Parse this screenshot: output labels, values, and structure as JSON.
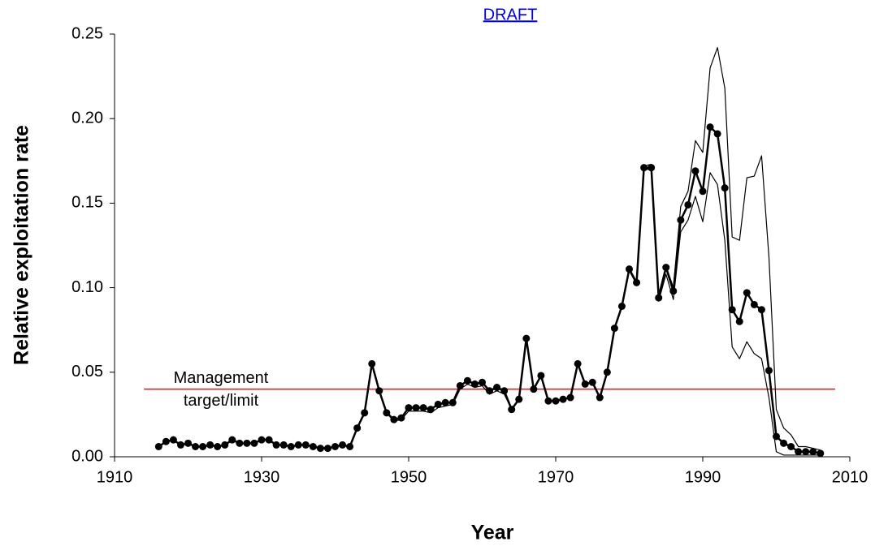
{
  "chart_data": {
    "type": "line",
    "title": "DRAFT",
    "x_label": "Year",
    "y_label": "Relative exploitation rate",
    "x": [
      1916,
      1917,
      1918,
      1919,
      1920,
      1921,
      1922,
      1923,
      1924,
      1925,
      1926,
      1927,
      1928,
      1929,
      1930,
      1931,
      1932,
      1933,
      1934,
      1935,
      1936,
      1937,
      1938,
      1939,
      1940,
      1941,
      1942,
      1943,
      1944,
      1945,
      1946,
      1947,
      1948,
      1949,
      1950,
      1951,
      1952,
      1953,
      1954,
      1955,
      1956,
      1957,
      1958,
      1959,
      1960,
      1961,
      1962,
      1963,
      1964,
      1965,
      1966,
      1967,
      1968,
      1969,
      1970,
      1971,
      1972,
      1973,
      1974,
      1975,
      1976,
      1977,
      1978,
      1979,
      1980,
      1981,
      1982,
      1983,
      1984,
      1985,
      1986,
      1987,
      1988,
      1989,
      1990,
      1991,
      1992,
      1993,
      1994,
      1995,
      1996,
      1997,
      1998,
      1999,
      2000,
      2001,
      2002,
      2003,
      2004,
      2005,
      2006
    ],
    "series": [
      {
        "color": "#000000",
        "markers": true,
        "values": [
          0.006,
          0.009,
          0.01,
          0.007,
          0.008,
          0.006,
          0.006,
          0.007,
          0.006,
          0.007,
          0.01,
          0.008,
          0.008,
          0.008,
          0.01,
          0.01,
          0.007,
          0.007,
          0.006,
          0.007,
          0.007,
          0.006,
          0.005,
          0.005,
          0.006,
          0.007,
          0.006,
          0.017,
          0.026,
          0.055,
          0.039,
          0.026,
          0.022,
          0.023,
          0.029,
          0.029,
          0.029,
          0.028,
          0.031,
          0.032,
          0.032,
          0.042,
          0.045,
          0.043,
          0.044,
          0.039,
          0.041,
          0.039,
          0.028,
          0.034,
          0.07,
          0.04,
          0.048,
          0.033,
          0.033,
          0.034,
          0.035,
          0.055,
          0.043,
          0.044,
          0.035,
          0.05,
          0.076,
          0.089,
          0.111,
          0.103,
          0.171,
          0.171,
          0.094,
          0.112,
          0.098,
          0.14,
          0.149,
          0.169,
          0.157,
          0.195,
          0.191,
          0.159,
          0.087,
          0.08,
          0.097,
          0.09,
          0.087,
          0.051,
          0.012,
          0.008,
          0.006,
          0.003,
          0.003,
          0.003,
          0.002
        ]
      },
      {
        "color": "#000000",
        "markers": false,
        "values": [
          0.006,
          0.009,
          0.01,
          0.007,
          0.008,
          0.006,
          0.006,
          0.007,
          0.006,
          0.007,
          0.01,
          0.008,
          0.008,
          0.008,
          0.01,
          0.01,
          0.007,
          0.007,
          0.006,
          0.007,
          0.007,
          0.006,
          0.005,
          0.005,
          0.006,
          0.007,
          0.006,
          0.017,
          0.026,
          0.055,
          0.039,
          0.026,
          0.022,
          0.023,
          0.029,
          0.029,
          0.029,
          0.028,
          0.031,
          0.032,
          0.032,
          0.042,
          0.045,
          0.043,
          0.044,
          0.039,
          0.041,
          0.039,
          0.028,
          0.034,
          0.07,
          0.04,
          0.048,
          0.033,
          0.033,
          0.034,
          0.035,
          0.055,
          0.043,
          0.044,
          0.035,
          0.05,
          0.076,
          0.089,
          0.111,
          0.103,
          0.172,
          0.173,
          0.096,
          0.113,
          0.1,
          0.148,
          0.157,
          0.187,
          0.18,
          0.23,
          0.242,
          0.218,
          0.13,
          0.128,
          0.165,
          0.166,
          0.178,
          0.118,
          0.028,
          0.017,
          0.013,
          0.006,
          0.006,
          0.005,
          0.004
        ]
      },
      {
        "color": "#000000",
        "markers": false,
        "values": [
          0.006,
          0.009,
          0.01,
          0.007,
          0.008,
          0.006,
          0.006,
          0.007,
          0.006,
          0.007,
          0.01,
          0.008,
          0.008,
          0.008,
          0.01,
          0.01,
          0.007,
          0.007,
          0.006,
          0.007,
          0.007,
          0.006,
          0.005,
          0.005,
          0.006,
          0.007,
          0.006,
          0.017,
          0.026,
          0.055,
          0.039,
          0.026,
          0.021,
          0.022,
          0.027,
          0.027,
          0.027,
          0.026,
          0.029,
          0.03,
          0.031,
          0.04,
          0.043,
          0.041,
          0.042,
          0.037,
          0.039,
          0.037,
          0.028,
          0.034,
          0.07,
          0.04,
          0.048,
          0.033,
          0.033,
          0.034,
          0.035,
          0.055,
          0.043,
          0.044,
          0.035,
          0.05,
          0.076,
          0.089,
          0.11,
          0.102,
          0.17,
          0.17,
          0.092,
          0.108,
          0.093,
          0.133,
          0.14,
          0.154,
          0.139,
          0.168,
          0.161,
          0.128,
          0.065,
          0.058,
          0.068,
          0.061,
          0.058,
          0.035,
          0.003,
          0.001,
          0.001,
          0.001,
          0.001,
          0.001,
          0.001
        ]
      }
    ],
    "reference_line": {
      "value": 0.04,
      "color": "#ff0000",
      "xrange": [
        1914,
        2008
      ],
      "label": [
        "Management",
        "target/limit"
      ]
    },
    "xlim": [
      1910,
      2010
    ],
    "xticks": [
      1910,
      1930,
      1950,
      1970,
      1990,
      2010
    ],
    "ylim": [
      0,
      0.25
    ],
    "yticks": [
      {
        "value": 0,
        "label": "0.00"
      },
      {
        "value": 0.05,
        "label": "0.05"
      },
      {
        "value": 0.1,
        "label": "0.10"
      },
      {
        "value": 0.15,
        "label": "0.15"
      },
      {
        "value": 0.2,
        "label": "0.20"
      },
      {
        "value": 0.25,
        "label": "0.25"
      }
    ],
    "grid": false
  }
}
